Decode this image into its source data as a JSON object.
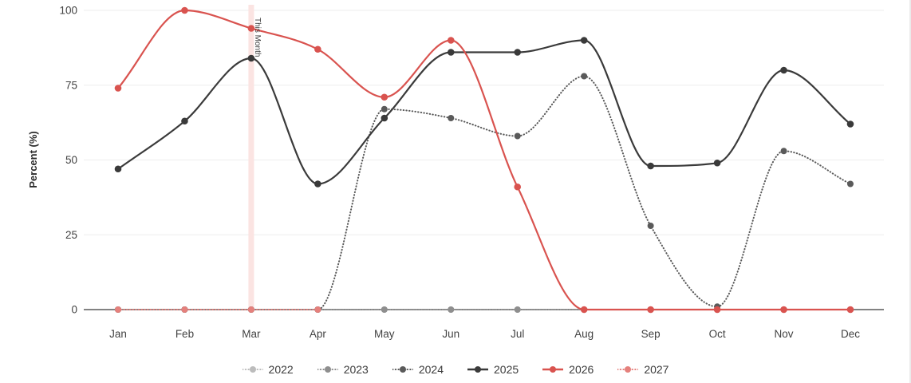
{
  "chart_data": {
    "type": "line",
    "title": "",
    "xlabel": "",
    "ylabel": "Percent (%)",
    "x": [
      "Jan",
      "Feb",
      "Mar",
      "Apr",
      "May",
      "Jun",
      "Jul",
      "Aug",
      "Sep",
      "Oct",
      "Nov",
      "Dec"
    ],
    "series": [
      {
        "name": "2022",
        "color": "#bcbcbc",
        "style": "dotted",
        "values": [
          0,
          0,
          0,
          0,
          0,
          0,
          0,
          0,
          0,
          0,
          0,
          0
        ]
      },
      {
        "name": "2023",
        "color": "#8e8e8e",
        "style": "dotted",
        "values": [
          0,
          0,
          0,
          0,
          0,
          0,
          0,
          0,
          0,
          0,
          0,
          0
        ]
      },
      {
        "name": "2024",
        "color": "#5a5a5a",
        "style": "dotted",
        "values": [
          0,
          0,
          0,
          0,
          67,
          64,
          58,
          78,
          28,
          1,
          53,
          42
        ]
      },
      {
        "name": "2025",
        "color": "#3a3a3a",
        "style": "solid",
        "values": [
          47,
          63,
          84,
          42,
          64,
          86,
          86,
          90,
          48,
          49,
          80,
          62
        ]
      },
      {
        "name": "2026",
        "color": "#d9534f",
        "style": "solid",
        "values": [
          74,
          100,
          94,
          87,
          71,
          90,
          41,
          0,
          0,
          0,
          0,
          0
        ]
      },
      {
        "name": "2027",
        "color": "#e5807c",
        "style": "dotted",
        "values": [
          0,
          0,
          0,
          0,
          null,
          null,
          null,
          null,
          null,
          null,
          null,
          null
        ]
      }
    ],
    "ylim": [
      0,
      100
    ],
    "y_ticks": [
      0,
      25,
      50,
      75,
      100
    ],
    "grid": true,
    "legend_position": "bottom",
    "annotation": {
      "x": "Mar",
      "label": "This Month",
      "band_color": "#fbe4e2",
      "text_color": "#3c3c3c"
    }
  },
  "colors": {
    "axis_line": "#595959",
    "gridline": "#ededed",
    "tick_label": "#424242",
    "axis_title": "#2b2b2b",
    "legend_label": "#3a3a3a",
    "background": "#ffffff"
  }
}
